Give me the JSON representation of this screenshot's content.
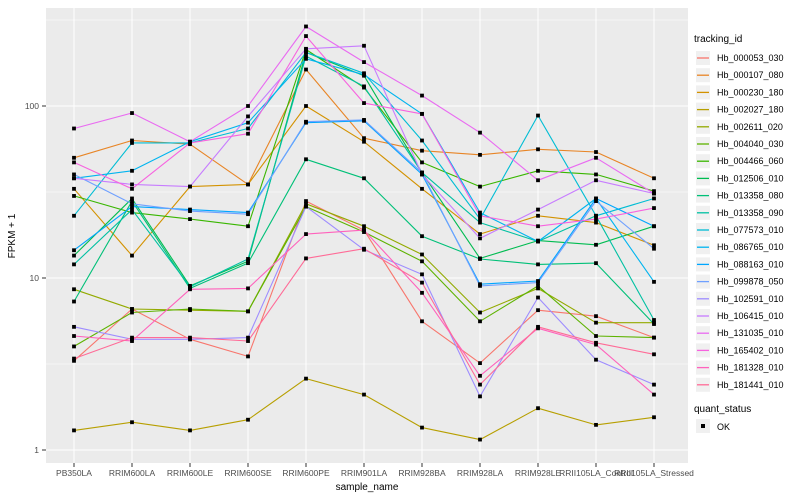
{
  "figure": {
    "background": "#FFFFFF",
    "panel_background": "#EBEBEB",
    "grid_major_color": "#FFFFFF",
    "grid_minor_color": "#F7F7F7",
    "tick_mark_color": "#333333",
    "tick_label_color": "#4D4D4D",
    "point_color": "#000000"
  },
  "legend": {
    "tracking_title": "tracking_id",
    "quant_title": "quant_status",
    "quant_items": [
      {
        "label": "OK",
        "marker": "black-square"
      }
    ],
    "key_background": "#F0F0F0"
  },
  "chart_data": {
    "type": "line",
    "title": "",
    "xlabel": "sample_name",
    "ylabel": "FPKM + 1",
    "y_scale": "log10",
    "ylim": [
      0.84,
      372
    ],
    "y_ticks": [
      1,
      10,
      100
    ],
    "y_tick_labels": [
      "1",
      "10",
      "100"
    ],
    "y_minor_breaks": [
      3.162,
      31.623,
      316.228
    ],
    "grid": true,
    "legend_position": "right",
    "x_categories": [
      "PB350LA",
      "RRIM600LA",
      "RRIM600LE",
      "RRIM600SE",
      "RRIM600PE",
      "RRIM901LA",
      "RRIM928BA",
      "RRIM928LA",
      "RRIM928LE",
      "RRII105LA_Control",
      "RRII105LA_Stressed"
    ],
    "point_marker": "black-square",
    "series": [
      {
        "name": "Hb_000053_030",
        "color": "#F8766D",
        "values": [
          3.3,
          6.6,
          4.4,
          3.5,
          28,
          19,
          5.6,
          3.2,
          6.5,
          6.0,
          4.5
        ]
      },
      {
        "name": "Hb_000107_080",
        "color": "#E88526",
        "values": [
          50,
          63,
          60,
          35,
          163,
          65,
          55,
          52,
          56,
          54,
          38
        ]
      },
      {
        "name": "Hb_000230_180",
        "color": "#D39200",
        "values": [
          33,
          13.5,
          34,
          35,
          100,
          62,
          33,
          18,
          23,
          21,
          15.5
        ]
      },
      {
        "name": "Hb_002027_180",
        "color": "#B79F00",
        "values": [
          1.3,
          1.45,
          1.3,
          1.5,
          2.6,
          2.1,
          1.35,
          1.15,
          1.75,
          1.4,
          1.55
        ]
      },
      {
        "name": "Hb_002611_020",
        "color": "#93AA00",
        "values": [
          8.6,
          6.6,
          6.5,
          6.4,
          27,
          20,
          13.7,
          6.3,
          8.7,
          5.5,
          5.5
        ]
      },
      {
        "name": "Hb_004040_030",
        "color": "#5EB300",
        "values": [
          4.0,
          6.3,
          6.6,
          6.4,
          26,
          18.5,
          12.5,
          5.6,
          9.0,
          4.6,
          4.5
        ]
      },
      {
        "name": "Hb_004466_060",
        "color": "#39B600",
        "values": [
          30,
          24,
          22,
          20,
          213,
          128,
          47,
          34,
          42,
          40,
          32
        ]
      },
      {
        "name": "Hb_012506_010",
        "color": "#00BC51",
        "values": [
          13.5,
          29,
          9.0,
          12.5,
          205,
          150,
          41,
          13,
          16.5,
          15.6,
          20
        ]
      },
      {
        "name": "Hb_013358_080",
        "color": "#00C078",
        "values": [
          7.3,
          28,
          8.7,
          12.2,
          49,
          38,
          17.5,
          12.9,
          12.0,
          12.2,
          5.4
        ]
      },
      {
        "name": "Hb_013358_090",
        "color": "#00C0A2",
        "values": [
          12.0,
          25,
          8.9,
          12.9,
          195,
          130,
          41,
          21,
          16.3,
          23,
          5.7
        ]
      },
      {
        "name": "Hb_077573_010",
        "color": "#00BDD4",
        "values": [
          23,
          61,
          61,
          74,
          205,
          155,
          63,
          22,
          88,
          23,
          29
        ]
      },
      {
        "name": "Hb_086765_010",
        "color": "#00B4EF",
        "values": [
          38,
          42,
          62,
          80,
          188,
          152,
          90,
          24,
          16.3,
          29,
          9.5
        ]
      },
      {
        "name": "Hb_088163_010",
        "color": "#00A6FF",
        "values": [
          14.5,
          26,
          25,
          24,
          80,
          82,
          40,
          9.2,
          9.6,
          29,
          20
        ]
      },
      {
        "name": "Hb_099878_050",
        "color": "#6FA0FF",
        "values": [
          40,
          27,
          24.5,
          23.5,
          81,
          83,
          41,
          9.0,
          9.4,
          28,
          14.8
        ]
      },
      {
        "name": "Hb_102591_010",
        "color": "#9E8CFF",
        "values": [
          5.2,
          4.4,
          4.4,
          4.5,
          26,
          14.6,
          10.5,
          2.05,
          7.7,
          3.35,
          2.4
        ]
      },
      {
        "name": "Hb_106415_010",
        "color": "#C77CFF",
        "values": [
          38,
          35,
          34,
          87,
          215,
          224,
          40,
          17,
          25,
          37,
          31
        ]
      },
      {
        "name": "Hb_131035_010",
        "color": "#E96BF1",
        "values": [
          74,
          91,
          62,
          100,
          290,
          180,
          115,
          70,
          37,
          50,
          31
        ]
      },
      {
        "name": "Hb_165402_010",
        "color": "#F763DF",
        "values": [
          47,
          33,
          61,
          69,
          255,
          104,
          90,
          23,
          20,
          22,
          25.5
        ]
      },
      {
        "name": "Hb_181328_010",
        "color": "#FF62BC",
        "values": [
          4.6,
          4.3,
          8.6,
          8.7,
          18,
          19,
          8.2,
          2.7,
          5.1,
          4.1,
          2.1
        ]
      },
      {
        "name": "Hb_181441_010",
        "color": "#FF6B97",
        "values": [
          3.4,
          4.5,
          4.5,
          4.3,
          13,
          14.8,
          9.4,
          2.4,
          5.2,
          4.2,
          3.6
        ]
      }
    ]
  }
}
